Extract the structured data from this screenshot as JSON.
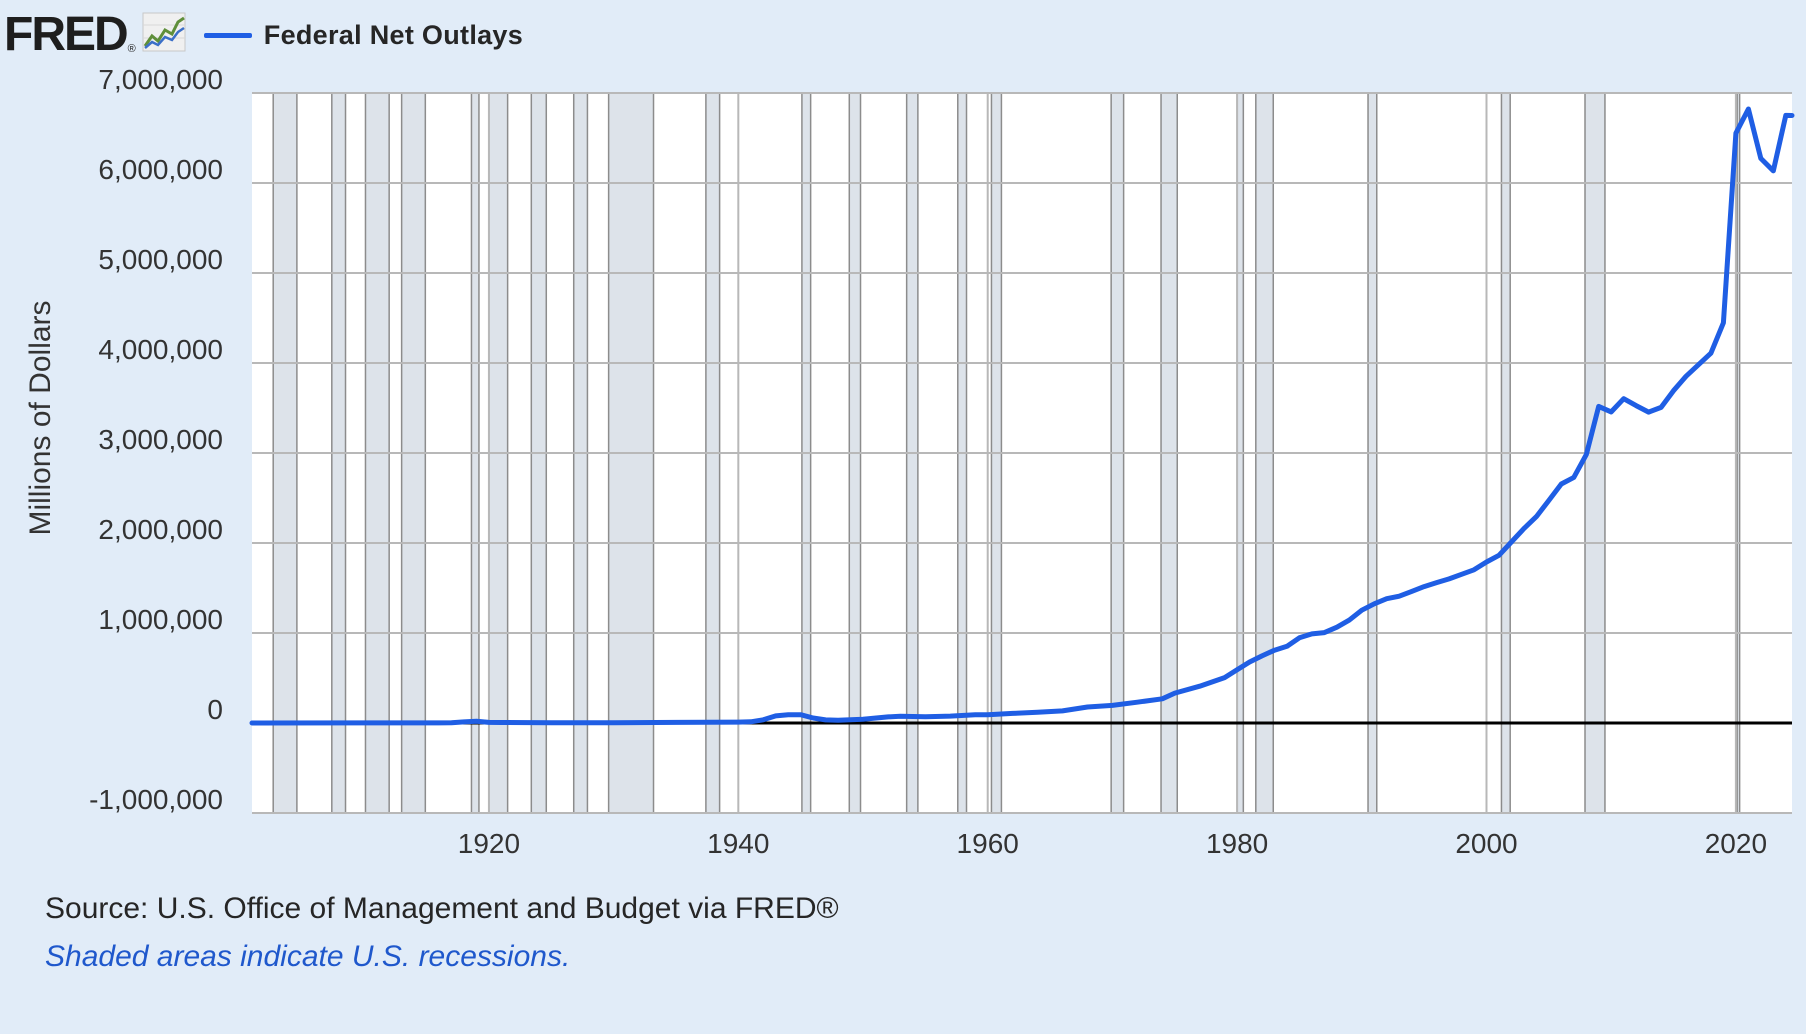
{
  "header": {
    "logo_text": "FRED",
    "logo_reg": "®",
    "logo_icon": "line-chart-icon",
    "legend_label": "Federal Net Outlays",
    "legend_color": "#1f5ee4"
  },
  "footer": {
    "source": "Source: U.S. Office of Management and Budget via FRED®",
    "note": "Shaded areas indicate U.S. recessions."
  },
  "colors": {
    "background": "#e1ecf8",
    "plot_background": "#ffffff",
    "grid": "#b8b8b8",
    "recession_fill": "#dde3ea",
    "recession_border": "#8c8c8c",
    "line": "#1f5ee4",
    "zero_line": "#000000"
  },
  "chart_data": {
    "type": "line",
    "title": "Federal Net Outlays",
    "xlabel": "",
    "ylabel": "Millions of Dollars",
    "xlim": [
      1901,
      2024.5
    ],
    "ylim": [
      -1000000,
      7000000
    ],
    "x_ticks": [
      1920,
      1940,
      1960,
      1980,
      2000,
      2020
    ],
    "x_tick_labels": [
      "1920",
      "1940",
      "1960",
      "1980",
      "2000",
      "2020"
    ],
    "y_ticks": [
      -1000000,
      0,
      1000000,
      2000000,
      3000000,
      4000000,
      5000000,
      6000000,
      7000000
    ],
    "y_tick_labels": [
      "-1,000,000",
      "0",
      "1,000,000",
      "2,000,000",
      "3,000,000",
      "4,000,000",
      "5,000,000",
      "6,000,000",
      "7,000,000"
    ],
    "grid": true,
    "legend_position": "top-left",
    "recessions": [
      [
        1902.7,
        1904.6
      ],
      [
        1907.4,
        1908.5
      ],
      [
        1910.1,
        1912.0
      ],
      [
        1913.0,
        1914.9
      ],
      [
        1918.6,
        1919.2
      ],
      [
        1920.0,
        1921.5
      ],
      [
        1923.4,
        1924.6
      ],
      [
        1926.8,
        1927.9
      ],
      [
        1929.6,
        1933.2
      ],
      [
        1937.4,
        1938.5
      ],
      [
        1945.1,
        1945.8
      ],
      [
        1948.9,
        1949.8
      ],
      [
        1953.5,
        1954.4
      ],
      [
        1957.6,
        1958.3
      ],
      [
        1960.3,
        1961.1
      ],
      [
        1969.9,
        1970.9
      ],
      [
        1973.9,
        1975.2
      ],
      [
        1980.0,
        1980.5
      ],
      [
        1981.5,
        1982.9
      ],
      [
        1990.5,
        1991.2
      ],
      [
        2001.2,
        2001.9
      ],
      [
        2007.9,
        2009.5
      ],
      [
        2020.1,
        2020.3
      ]
    ],
    "series": [
      {
        "name": "Federal Net Outlays",
        "x": [
          1901,
          1910,
          1916,
          1917,
          1918,
          1919,
          1920,
          1921,
          1925,
          1930,
          1935,
          1940,
          1941,
          1942,
          1943,
          1944,
          1945,
          1946,
          1947,
          1948,
          1950,
          1952,
          1953,
          1955,
          1957,
          1959,
          1960,
          1962,
          1964,
          1966,
          1968,
          1970,
          1972,
          1974,
          1975,
          1977,
          1979,
          1980,
          1981,
          1982,
          1983,
          1984,
          1985,
          1986,
          1987,
          1988,
          1989,
          1990,
          1991,
          1992,
          1993,
          1994,
          1995,
          1996,
          1997,
          1998,
          1999,
          2000,
          2001,
          2002,
          2003,
          2004,
          2005,
          2006,
          2007,
          2008,
          2009,
          2010,
          2011,
          2012,
          2013,
          2014,
          2015,
          2016,
          2017,
          2018,
          2019,
          2020,
          2021,
          2022,
          2023,
          2024,
          2024.5
        ],
        "values": [
          521,
          694,
          713,
          1954,
          12677,
          18493,
          6358,
          5062,
          2924,
          3320,
          6412,
          9468,
          13653,
          35137,
          78555,
          91304,
          92712,
          55232,
          34496,
          29764,
          42562,
          67686,
          76101,
          68444,
          76578,
          92098,
          92191,
          106821,
          118528,
          134532,
          178134,
          195649,
          230681,
          269359,
          332332,
          409218,
          504028,
          590941,
          678241,
          745743,
          808364,
          851805,
          946344,
          990382,
          1004017,
          1064416,
          1143743,
          1252993,
          1324226,
          1381529,
          1409386,
          1461753,
          1515742,
          1560484,
          1601116,
          1652458,
          1701842,
          1788950,
          1862846,
          2010894,
          2159899,
          2292841,
          2471957,
          2655050,
          2728686,
          2982544,
          3517677,
          3457079,
          3603065,
          3526563,
          3454881,
          3506284,
          3691850,
          3852616,
          3981630,
          4109044,
          4446584,
          6553620,
          6822449,
          6273260,
          6134672,
          6751000,
          6750000
        ]
      }
    ]
  }
}
